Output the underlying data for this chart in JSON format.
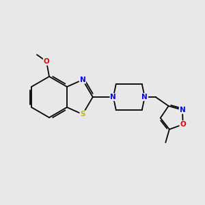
{
  "background_color": "#e8e8e8",
  "bond_color": "#000000",
  "bond_lw": 1.3,
  "atom_colors": {
    "N": "#0000ee",
    "O": "#dd0000",
    "S": "#bbbb00",
    "C": "#000000"
  },
  "font_size": 7.5,
  "figure_size": [
    3.0,
    3.0
  ],
  "dpi": 100
}
